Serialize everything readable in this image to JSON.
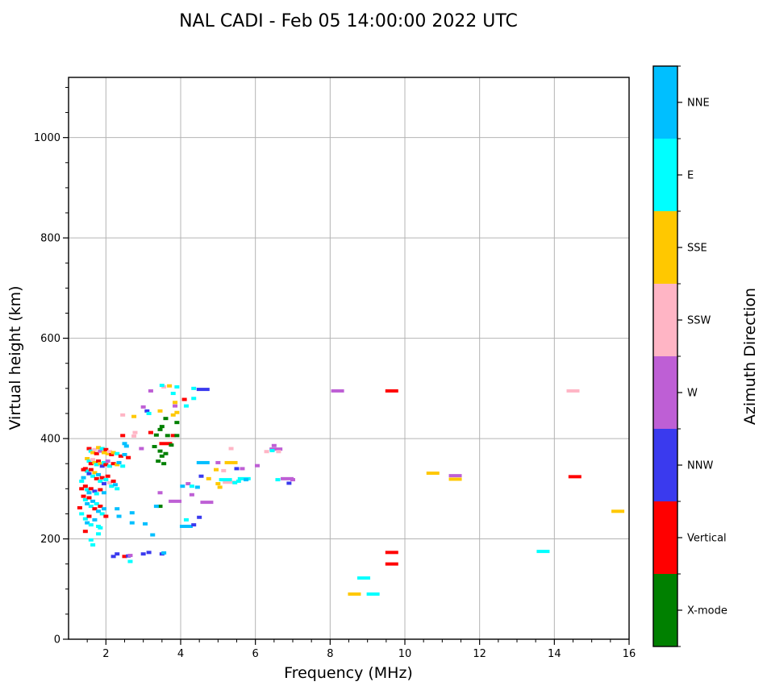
{
  "chart_data": {
    "type": "scatter",
    "title": "NAL CADI - Feb 05 14:00:00 2022 UTC",
    "xlabel": "Frequency (MHz)",
    "ylabel": "Virtual height (km)",
    "colorbar_label": "Azimuth Direction",
    "xlim": [
      1,
      16
    ],
    "ylim": [
      0,
      1120
    ],
    "xticks": [
      2,
      4,
      6,
      8,
      10,
      12,
      14,
      16
    ],
    "yticks": [
      0,
      200,
      400,
      600,
      800,
      1000
    ],
    "x_minor_step": 0.5,
    "y_minor_step": 50,
    "grid": true,
    "grid_color": "#b4b4b4",
    "axis_color": "#000000",
    "legend": {
      "position": "right-colorbar",
      "categories": [
        {
          "name": "NNE",
          "color": "#00BFFF"
        },
        {
          "name": "E",
          "color": "#00FFFF"
        },
        {
          "name": "SSE",
          "color": "#FFC800"
        },
        {
          "name": "SSW",
          "color": "#FFB5C5"
        },
        {
          "name": "W",
          "color": "#BE5FD5"
        },
        {
          "name": "NNW",
          "color": "#3A3AEE"
        },
        {
          "name": "Vertical",
          "color": "#FF0000"
        },
        {
          "name": "X-mode",
          "color": "#008000"
        }
      ]
    },
    "points_format": [
      "freq_mhz",
      "height_km",
      "category_index",
      "wide_flag"
    ],
    "points": [
      [
        8.2,
        495,
        4,
        1
      ],
      [
        9.65,
        495,
        6,
        1
      ],
      [
        14.5,
        495,
        3,
        1
      ],
      [
        10.75,
        331,
        2,
        1
      ],
      [
        11.35,
        326,
        4,
        1
      ],
      [
        11.35,
        319,
        2,
        1
      ],
      [
        14.55,
        324,
        6,
        1
      ],
      [
        15.7,
        255,
        2,
        1
      ],
      [
        9.65,
        173,
        6,
        1
      ],
      [
        9.65,
        150,
        6,
        1
      ],
      [
        13.7,
        175,
        1,
        1
      ],
      [
        8.9,
        122,
        1,
        1
      ],
      [
        8.65,
        90,
        2,
        1
      ],
      [
        9.15,
        90,
        1,
        1
      ],
      [
        6.5,
        386,
        4
      ],
      [
        6.55,
        379,
        4,
        1
      ],
      [
        6.3,
        374,
        3
      ],
      [
        6.45,
        376,
        1
      ],
      [
        6.62,
        374,
        3
      ],
      [
        6.05,
        346,
        4
      ],
      [
        5.65,
        340,
        4
      ],
      [
        5.7,
        320,
        1,
        1
      ],
      [
        6.6,
        318,
        1
      ],
      [
        6.85,
        320,
        4,
        1
      ],
      [
        6.9,
        311,
        5
      ],
      [
        7.0,
        318,
        4
      ],
      [
        5.35,
        380,
        3
      ],
      [
        4.6,
        352,
        0,
        1
      ],
      [
        5.0,
        352,
        4
      ],
      [
        5.35,
        352,
        2,
        1
      ],
      [
        5.5,
        340,
        5
      ],
      [
        5.15,
        336,
        3
      ],
      [
        4.95,
        338,
        2
      ],
      [
        4.55,
        325,
        5
      ],
      [
        4.75,
        320,
        2
      ],
      [
        5.0,
        310,
        2
      ],
      [
        5.05,
        303,
        2
      ],
      [
        5.3,
        313,
        3,
        1
      ],
      [
        5.55,
        315,
        1
      ],
      [
        5.75,
        318,
        0
      ],
      [
        5.2,
        318,
        1,
        1
      ],
      [
        5.45,
        312,
        1
      ],
      [
        4.05,
        305,
        0
      ],
      [
        4.2,
        310,
        4
      ],
      [
        4.3,
        305,
        1
      ],
      [
        4.45,
        303,
        0
      ],
      [
        4.3,
        288,
        4
      ],
      [
        3.85,
        275,
        4,
        1
      ],
      [
        4.7,
        273,
        4,
        1
      ],
      [
        3.45,
        292,
        4
      ],
      [
        4.15,
        238,
        1
      ],
      [
        4.5,
        243,
        5
      ],
      [
        4.15,
        225,
        0,
        1
      ],
      [
        4.35,
        228,
        5
      ],
      [
        3.45,
        265,
        7
      ],
      [
        3.55,
        503,
        3
      ],
      [
        3.7,
        505,
        2
      ],
      [
        3.9,
        503,
        1
      ],
      [
        3.5,
        506,
        1
      ],
      [
        4.35,
        500,
        1
      ],
      [
        4.6,
        498,
        5,
        1
      ],
      [
        3.2,
        495,
        4
      ],
      [
        3.8,
        490,
        1
      ],
      [
        4.1,
        478,
        6
      ],
      [
        4.35,
        480,
        1
      ],
      [
        3.85,
        472,
        2
      ],
      [
        3.85,
        465,
        4
      ],
      [
        4.15,
        465,
        1
      ],
      [
        3.45,
        455,
        2
      ],
      [
        3.9,
        452,
        2
      ],
      [
        3.6,
        440,
        7
      ],
      [
        3.8,
        447,
        2
      ],
      [
        3.0,
        463,
        4
      ],
      [
        3.1,
        455,
        5
      ],
      [
        3.15,
        450,
        1
      ],
      [
        2.75,
        444,
        2
      ],
      [
        2.45,
        447,
        3
      ],
      [
        3.5,
        424,
        7
      ],
      [
        3.45,
        418,
        7
      ],
      [
        3.9,
        432,
        7
      ],
      [
        3.2,
        412,
        6
      ],
      [
        3.65,
        406,
        7
      ],
      [
        3.8,
        406,
        6
      ],
      [
        3.9,
        406,
        7
      ],
      [
        2.45,
        406,
        6
      ],
      [
        2.75,
        405,
        3
      ],
      [
        2.78,
        412,
        3
      ],
      [
        2.5,
        390,
        0
      ],
      [
        2.55,
        385,
        0
      ],
      [
        3.3,
        384,
        7
      ],
      [
        3.6,
        390,
        6,
        1
      ],
      [
        3.75,
        387,
        7
      ],
      [
        2.95,
        380,
        4
      ],
      [
        3.45,
        375,
        7
      ],
      [
        3.5,
        365,
        7
      ],
      [
        3.6,
        370,
        7
      ],
      [
        3.4,
        355,
        7
      ],
      [
        3.55,
        350,
        7
      ],
      [
        3.35,
        407,
        7
      ],
      [
        1.55,
        380,
        6
      ],
      [
        1.6,
        375,
        1
      ],
      [
        1.65,
        372,
        2
      ],
      [
        1.7,
        378,
        3
      ],
      [
        1.75,
        370,
        6
      ],
      [
        1.8,
        382,
        2
      ],
      [
        1.85,
        375,
        4
      ],
      [
        1.9,
        380,
        1
      ],
      [
        1.95,
        372,
        2
      ],
      [
        2.0,
        378,
        6
      ],
      [
        2.05,
        370,
        2
      ],
      [
        2.1,
        374,
        3
      ],
      [
        2.15,
        368,
        6
      ],
      [
        2.2,
        372,
        2
      ],
      [
        2.3,
        370,
        1
      ],
      [
        2.4,
        365,
        6
      ],
      [
        2.5,
        368,
        0
      ],
      [
        2.6,
        362,
        6
      ],
      [
        1.5,
        360,
        2
      ],
      [
        1.55,
        355,
        1
      ],
      [
        1.6,
        350,
        6
      ],
      [
        1.65,
        358,
        3
      ],
      [
        1.7,
        352,
        2
      ],
      [
        1.75,
        348,
        1
      ],
      [
        1.8,
        355,
        6
      ],
      [
        1.85,
        350,
        2
      ],
      [
        1.9,
        345,
        5
      ],
      [
        1.95,
        352,
        1
      ],
      [
        2.0,
        348,
        6
      ],
      [
        2.05,
        355,
        4
      ],
      [
        2.1,
        345,
        1
      ],
      [
        2.2,
        350,
        6
      ],
      [
        2.3,
        348,
        2
      ],
      [
        2.35,
        352,
        0
      ],
      [
        2.45,
        345,
        1
      ],
      [
        1.45,
        340,
        6
      ],
      [
        1.5,
        335,
        1
      ],
      [
        1.55,
        330,
        5
      ],
      [
        1.6,
        338,
        6
      ],
      [
        1.65,
        325,
        1
      ],
      [
        1.7,
        332,
        2
      ],
      [
        1.75,
        320,
        6
      ],
      [
        1.8,
        328,
        0
      ],
      [
        1.85,
        315,
        1
      ],
      [
        1.9,
        322,
        6
      ],
      [
        1.95,
        310,
        5
      ],
      [
        2.0,
        318,
        1
      ],
      [
        2.05,
        325,
        6
      ],
      [
        2.1,
        312,
        3
      ],
      [
        2.15,
        305,
        1
      ],
      [
        2.2,
        315,
        6
      ],
      [
        2.25,
        308,
        0
      ],
      [
        2.3,
        300,
        1
      ],
      [
        1.45,
        305,
        6
      ],
      [
        1.5,
        298,
        1
      ],
      [
        1.55,
        292,
        0
      ],
      [
        1.6,
        300,
        6
      ],
      [
        1.7,
        295,
        5
      ],
      [
        1.75,
        290,
        1
      ],
      [
        1.85,
        298,
        6
      ],
      [
        1.95,
        292,
        0
      ],
      [
        1.35,
        300,
        6
      ],
      [
        1.35,
        315,
        1
      ],
      [
        1.4,
        322,
        0
      ],
      [
        1.4,
        338,
        6
      ],
      [
        1.4,
        285,
        6
      ],
      [
        1.45,
        278,
        1
      ],
      [
        1.5,
        270,
        0
      ],
      [
        1.55,
        282,
        6
      ],
      [
        1.6,
        265,
        1
      ],
      [
        1.65,
        275,
        0
      ],
      [
        1.7,
        260,
        6
      ],
      [
        1.75,
        270,
        1
      ],
      [
        1.8,
        255,
        0
      ],
      [
        1.85,
        265,
        6
      ],
      [
        1.9,
        250,
        1
      ],
      [
        1.95,
        260,
        0
      ],
      [
        2.0,
        245,
        6
      ],
      [
        1.45,
        240,
        1
      ],
      [
        1.5,
        232,
        0
      ],
      [
        1.55,
        245,
        6
      ],
      [
        1.6,
        228,
        1
      ],
      [
        1.7,
        238,
        0
      ],
      [
        1.8,
        225,
        1
      ],
      [
        1.3,
        262,
        6
      ],
      [
        1.35,
        250,
        1
      ],
      [
        2.3,
        260,
        0
      ],
      [
        2.35,
        245,
        0
      ],
      [
        2.7,
        252,
        0
      ],
      [
        2.7,
        232,
        0
      ],
      [
        3.05,
        230,
        0
      ],
      [
        3.35,
        265,
        0
      ],
      [
        3.25,
        208,
        0
      ],
      [
        1.45,
        215,
        6
      ],
      [
        1.6,
        198,
        1
      ],
      [
        1.65,
        188,
        1
      ],
      [
        1.8,
        210,
        1
      ],
      [
        1.85,
        222,
        1
      ],
      [
        2.2,
        165,
        5
      ],
      [
        2.3,
        170,
        5
      ],
      [
        2.5,
        165,
        6
      ],
      [
        2.6,
        166,
        5
      ],
      [
        2.65,
        167,
        4
      ],
      [
        3.0,
        170,
        5
      ],
      [
        3.15,
        173,
        5
      ],
      [
        3.5,
        170,
        5
      ],
      [
        3.55,
        172,
        0
      ],
      [
        2.65,
        155,
        1
      ]
    ]
  }
}
